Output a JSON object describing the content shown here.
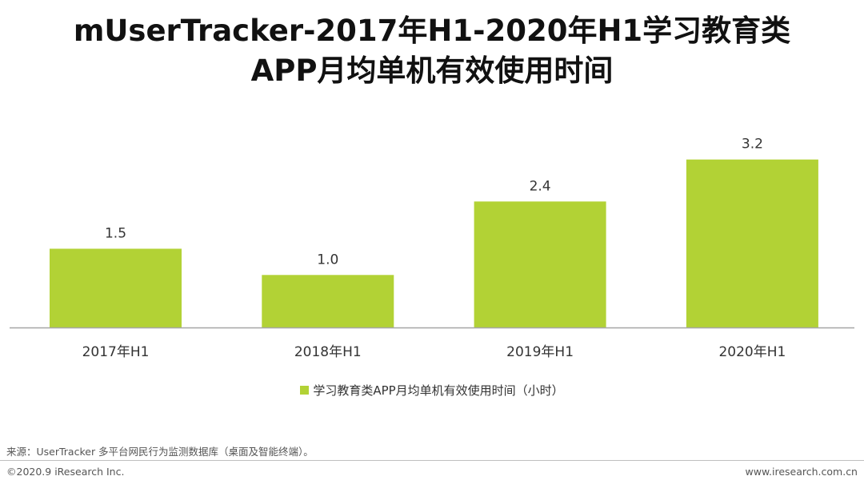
{
  "title": {
    "line1": "mUserTracker-2017年H1-2020年H1学习教育类",
    "line2": "APP月均单机有效使用时间"
  },
  "colors": {
    "bar": "#b2d235",
    "axis": "#a6a6a6",
    "text": "#222222"
  },
  "legend": {
    "label": "学习教育类APP月均单机有效使用时间（小时）"
  },
  "chart_data": {
    "type": "bar",
    "categories": [
      "2017年H1",
      "2018年H1",
      "2019年H1",
      "2020年H1"
    ],
    "series": [
      {
        "name": "学习教育类APP月均单机有效使用时间（小时）",
        "values": [
          1.5,
          1.0,
          2.4,
          3.2
        ]
      }
    ],
    "value_labels": [
      "1.5",
      "1.0",
      "2.4",
      "3.2"
    ],
    "title": "mUserTracker-2017年H1-2020年H1学习教育类APP月均单机有效使用时间",
    "xlabel": "",
    "ylabel": "",
    "ylim": [
      0,
      3.5
    ],
    "grid": false,
    "legend_position": "bottom"
  },
  "footer": {
    "source": "来源：UserTracker 多平台网民行为监测数据库（桌面及智能终端）。",
    "copyright": "©2020.9 iResearch Inc.",
    "website": "www.iresearch.com.cn"
  }
}
